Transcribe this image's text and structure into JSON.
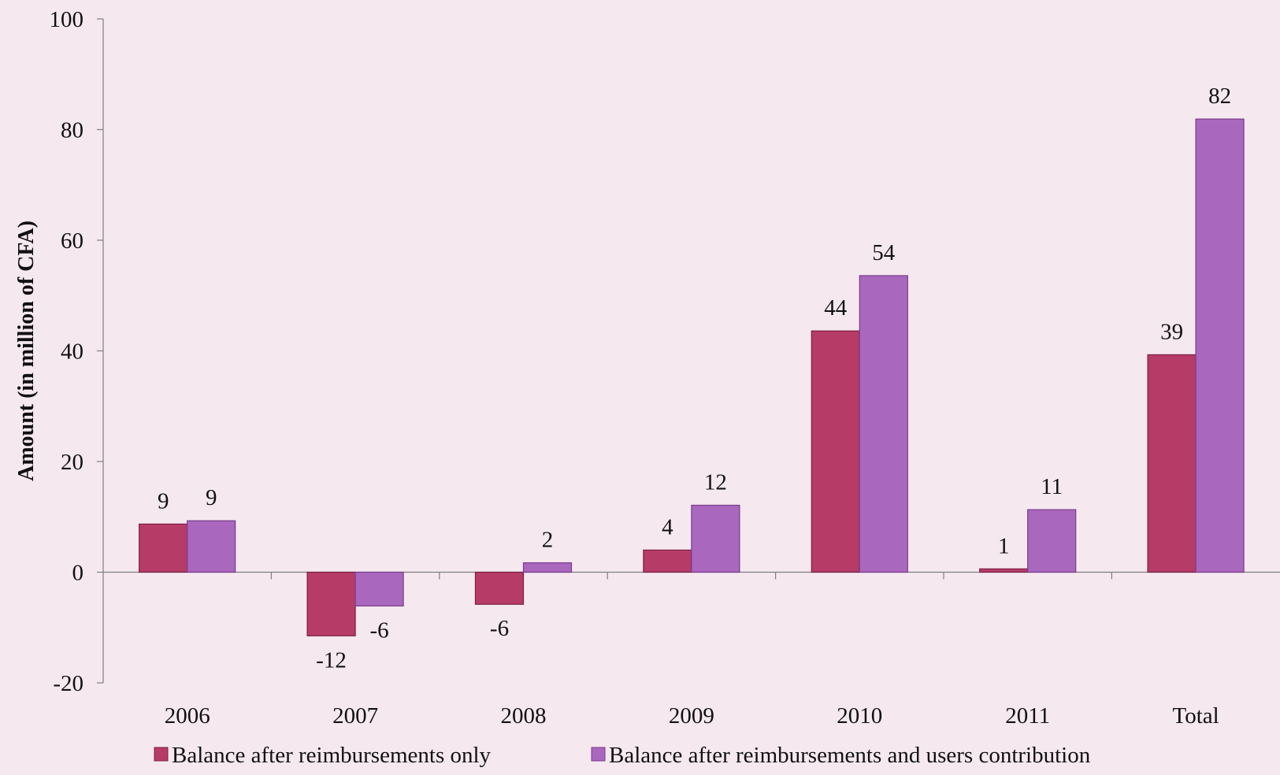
{
  "chart_data": {
    "type": "bar",
    "title": "",
    "xlabel": "",
    "ylabel": "Amount (in million of CFA)",
    "ylim": [
      -20,
      100
    ],
    "yticks": [
      -20,
      0,
      20,
      40,
      60,
      80,
      100
    ],
    "categories": [
      "2006",
      "2007",
      "2008",
      "2009",
      "2010",
      "2011",
      "Total"
    ],
    "series": [
      {
        "name": "Balance after reimbursements only",
        "color": "#b73b67",
        "values": [
          8.7,
          -11.5,
          -5.8,
          4.0,
          43.6,
          0.6,
          39.3
        ],
        "labels": [
          "9",
          "-12",
          "-6",
          "4",
          "44",
          "1",
          "39"
        ]
      },
      {
        "name": "Balance after reimbursements and users contribution",
        "color": "#a967bd",
        "values": [
          9.3,
          -6.1,
          1.7,
          12.1,
          53.6,
          11.3,
          81.9
        ],
        "labels": [
          "9",
          "-6",
          "2",
          "12",
          "54",
          "11",
          "82"
        ]
      }
    ],
    "grid": false,
    "legend": "bottom"
  }
}
